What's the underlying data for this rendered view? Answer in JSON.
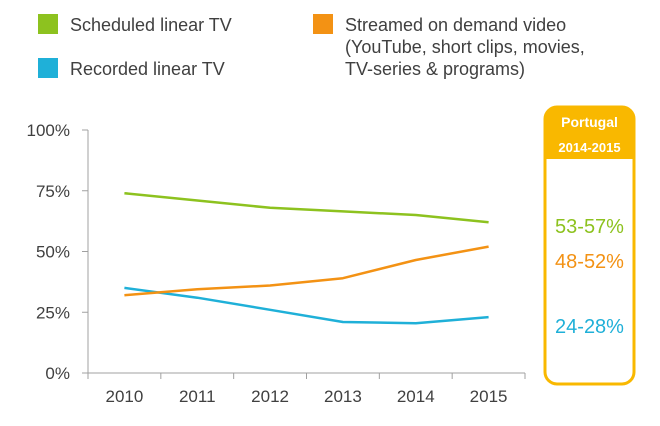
{
  "chart_data": {
    "type": "line",
    "x": [
      "2010",
      "2011",
      "2012",
      "2013",
      "2014",
      "2015"
    ],
    "ylim": [
      0,
      100
    ],
    "yticks": [
      "0%",
      "25%",
      "50%",
      "75%",
      "100%"
    ],
    "grid": false,
    "legend_position": "top",
    "series": [
      {
        "name": "Scheduled linear TV",
        "color": "#8dc21f",
        "values": [
          74,
          71,
          68,
          66.5,
          65,
          62
        ]
      },
      {
        "name": "Recorded linear TV",
        "color": "#1fb0d8",
        "values": [
          35,
          31,
          26,
          21,
          20.5,
          23
        ]
      },
      {
        "name": "Streamed on demand video (YouTube, short clips, movies, TV-series & programs)",
        "name_lines": [
          "Streamed on demand video",
          "(YouTube, short clips, movies,",
          "TV-series & programs)"
        ],
        "color": "#f39214",
        "values": [
          32,
          34.5,
          36,
          39,
          46.5,
          52
        ]
      }
    ],
    "side_box": {
      "title": "Portugal",
      "subtitle": "2014-2015",
      "border_color": "#f9b800",
      "values": [
        {
          "text": "53-57%",
          "color": "#8dc21f"
        },
        {
          "text": "48-52%",
          "color": "#f39214"
        },
        {
          "text": "24-28%",
          "color": "#1fb0d8"
        }
      ]
    }
  }
}
